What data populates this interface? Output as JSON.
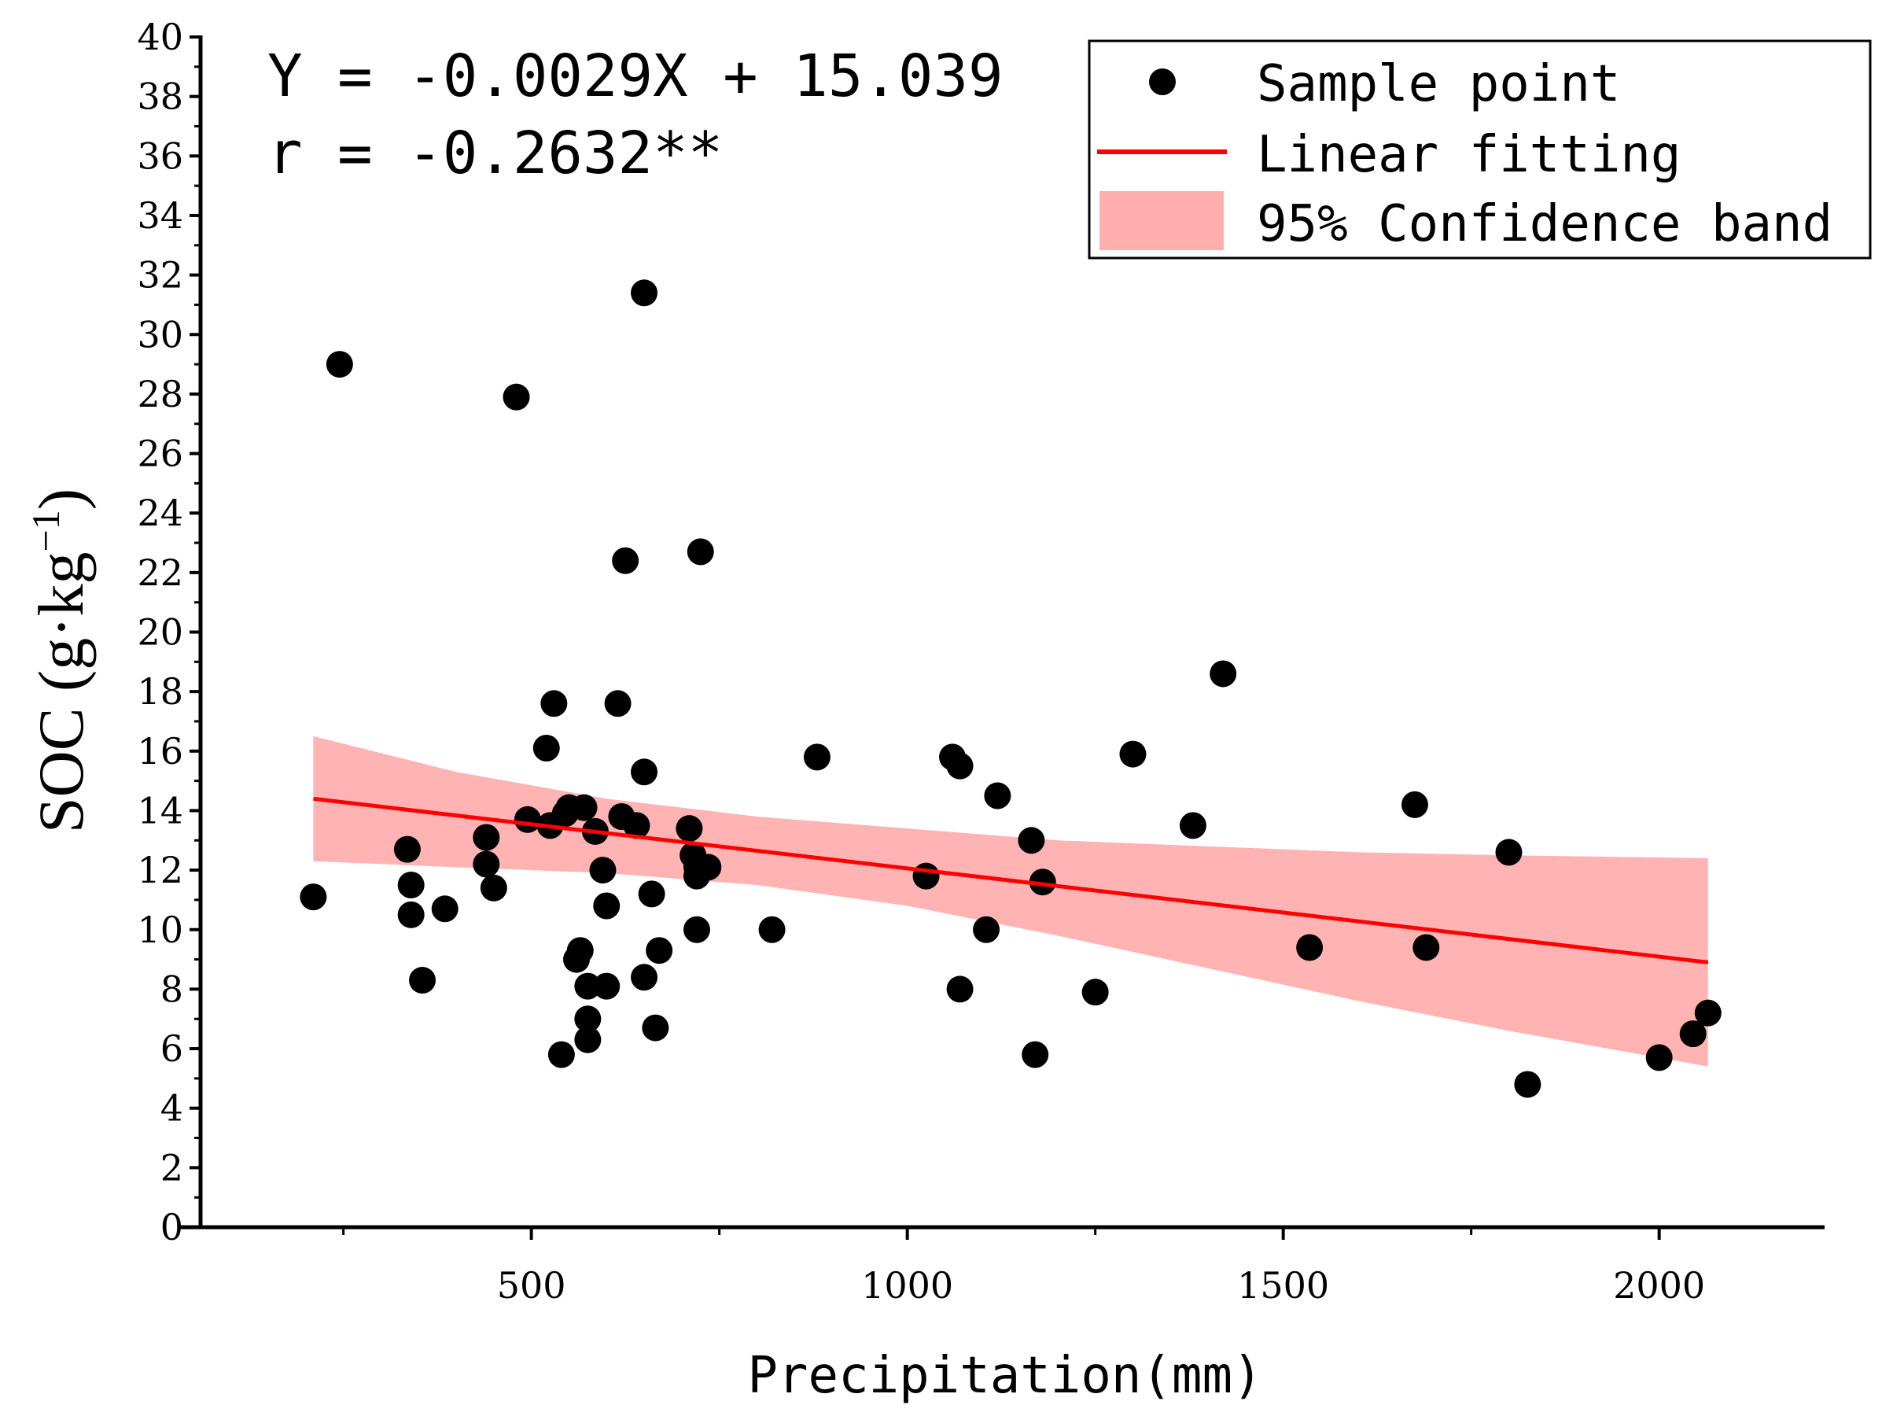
{
  "chart_data": {
    "type": "scatter",
    "title": "",
    "xlabel": "Precipitation(mm)",
    "ylabel": "SOC (g·kg⁻¹)",
    "ylabel_main": "SOC (g·kg",
    "ylabel_sup": "−1",
    "ylabel_close": ")",
    "xlim": [
      60,
      2220
    ],
    "ylim": [
      0,
      40
    ],
    "xticks": [
      500,
      1000,
      1500,
      2000
    ],
    "xtick_labels": [
      "500",
      "1000",
      "1500",
      "2000"
    ],
    "xminor_ticks": [
      250,
      750,
      1250,
      1750
    ],
    "yticks": [
      0,
      2,
      4,
      6,
      8,
      10,
      12,
      14,
      16,
      18,
      20,
      22,
      24,
      26,
      28,
      30,
      32,
      34,
      36,
      38,
      40
    ],
    "ytick_labels": [
      "0",
      "2",
      "4",
      "6",
      "8",
      "10",
      "12",
      "14",
      "16",
      "18",
      "20",
      "22",
      "24",
      "26",
      "28",
      "30",
      "32",
      "34",
      "36",
      "38",
      "40"
    ],
    "equation": "Y = -0.0029X + 15.039",
    "correlation": "r = -0.2632**",
    "legend": {
      "position": "top-right",
      "items": [
        "Sample point",
        "Linear fitting",
        "95% Confidence band"
      ]
    },
    "colors": {
      "points": "#000000",
      "fit_line": "#ff0000",
      "band": "#ff9a9a"
    },
    "fit_line": {
      "x": [
        210,
        2065
      ],
      "y": [
        14.4,
        8.9
      ]
    },
    "confidence_band": {
      "x": [
        210,
        400,
        600,
        800,
        1000,
        1200,
        1400,
        1600,
        1800,
        2065
      ],
      "upper": [
        16.5,
        15.3,
        14.4,
        13.8,
        13.4,
        13.0,
        12.8,
        12.6,
        12.5,
        12.4
      ],
      "lower": [
        12.3,
        12.1,
        11.9,
        11.5,
        10.8,
        9.8,
        8.7,
        7.6,
        6.6,
        5.4
      ]
    },
    "points": [
      [
        210,
        11.1
      ],
      [
        245,
        29.0
      ],
      [
        335,
        12.7
      ],
      [
        340,
        11.5
      ],
      [
        340,
        10.5
      ],
      [
        355,
        8.3
      ],
      [
        385,
        10.7
      ],
      [
        440,
        13.1
      ],
      [
        440,
        12.2
      ],
      [
        450,
        11.4
      ],
      [
        480,
        27.9
      ],
      [
        495,
        13.7
      ],
      [
        520,
        16.1
      ],
      [
        525,
        13.5
      ],
      [
        530,
        17.6
      ],
      [
        540,
        5.8
      ],
      [
        545,
        13.9
      ],
      [
        550,
        14.1
      ],
      [
        560,
        9.0
      ],
      [
        565,
        9.3
      ],
      [
        570,
        14.1
      ],
      [
        575,
        8.1
      ],
      [
        575,
        7.0
      ],
      [
        575,
        6.3
      ],
      [
        585,
        13.3
      ],
      [
        595,
        12.0
      ],
      [
        600,
        10.8
      ],
      [
        600,
        8.1
      ],
      [
        615,
        17.6
      ],
      [
        620,
        13.8
      ],
      [
        625,
        22.4
      ],
      [
        640,
        13.5
      ],
      [
        650,
        15.3
      ],
      [
        650,
        31.4
      ],
      [
        650,
        8.4
      ],
      [
        660,
        11.2
      ],
      [
        665,
        6.7
      ],
      [
        670,
        9.3
      ],
      [
        710,
        13.4
      ],
      [
        715,
        12.5
      ],
      [
        720,
        12.1
      ],
      [
        720,
        11.8
      ],
      [
        720,
        10.0
      ],
      [
        725,
        22.7
      ],
      [
        735,
        12.1
      ],
      [
        820,
        10.0
      ],
      [
        880,
        15.8
      ],
      [
        1025,
        11.8
      ],
      [
        1060,
        15.8
      ],
      [
        1070,
        8.0
      ],
      [
        1070,
        15.5
      ],
      [
        1105,
        10.0
      ],
      [
        1120,
        14.5
      ],
      [
        1165,
        13.0
      ],
      [
        1170,
        5.8
      ],
      [
        1180,
        11.6
      ],
      [
        1250,
        7.9
      ],
      [
        1300,
        15.9
      ],
      [
        1380,
        13.5
      ],
      [
        1420,
        18.6
      ],
      [
        1535,
        9.4
      ],
      [
        1675,
        14.2
      ],
      [
        1690,
        9.4
      ],
      [
        1800,
        12.6
      ],
      [
        1825,
        4.8
      ],
      [
        2000,
        5.7
      ],
      [
        2045,
        6.5
      ],
      [
        2065,
        7.2
      ]
    ]
  }
}
